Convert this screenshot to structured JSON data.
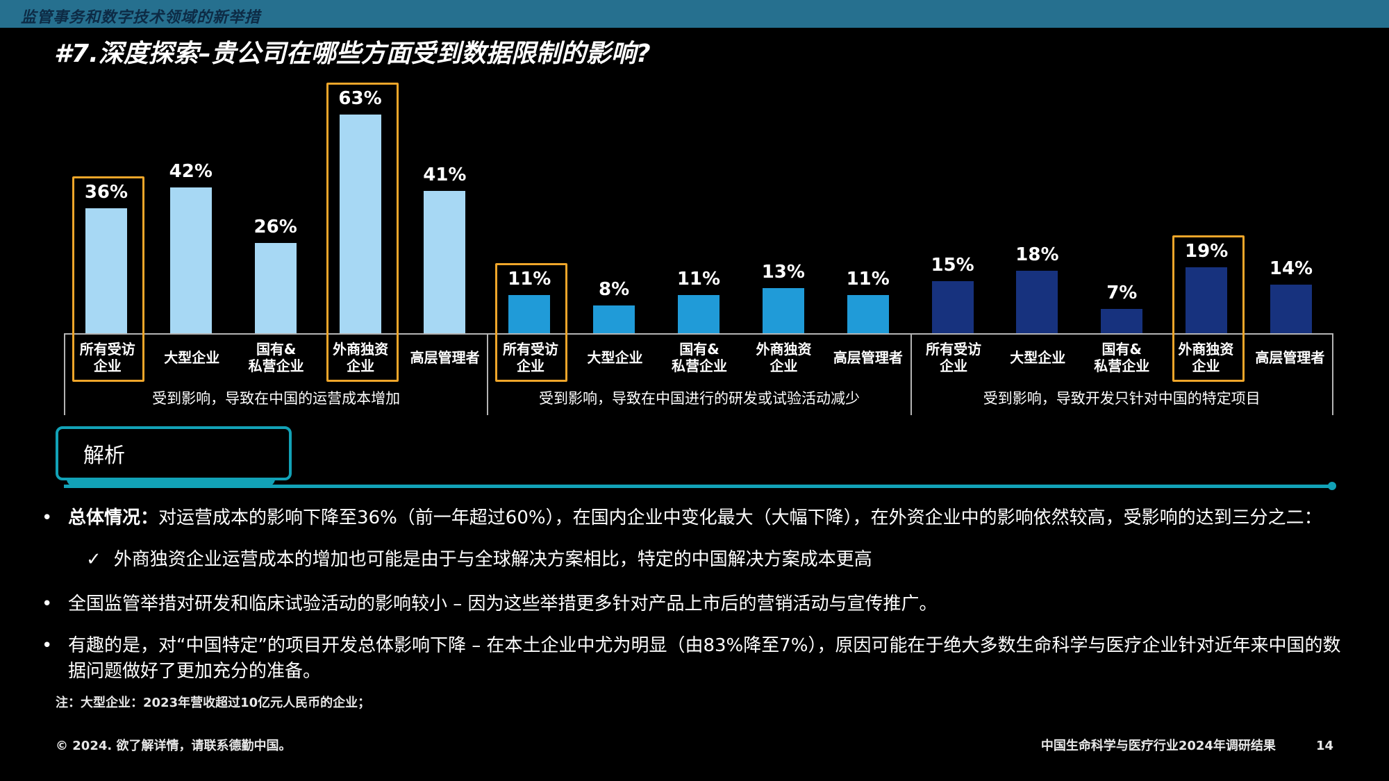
{
  "header": {
    "tagline": "监管事务和数字技术领域的新举措"
  },
  "title": "#7.深度探索–贵公司在哪些方面受到数据限制的影响?",
  "chart_data": {
    "type": "bar",
    "unit": "%",
    "ylim": [
      0,
      70
    ],
    "grid": false,
    "categories": [
      "所有受访\n企业",
      "大型企业",
      "国有&\n私营企业",
      "外商独资\n企业",
      "高层管理者"
    ],
    "highlight_color": "#efa62a",
    "axis_color": "#b5b5b5",
    "groups": [
      {
        "caption": "受到影响，导致在中国的运营成本增加",
        "color": "#a7d8f4",
        "values": [
          36,
          42,
          26,
          63,
          41
        ],
        "labels": [
          "36%",
          "42%",
          "26%",
          "63%",
          "41%"
        ],
        "highlighted": [
          0,
          3
        ]
      },
      {
        "caption": "受到影响，导致在中国进行的研发或试验活动减少",
        "color": "#209bd8",
        "values": [
          11,
          8,
          11,
          13,
          11
        ],
        "labels": [
          "11%",
          "8%",
          "11%",
          "13%",
          "11%"
        ],
        "highlighted": [
          0
        ]
      },
      {
        "caption": "受到影响，导致开发只针对中国的特定项目",
        "color": "#17327e",
        "values": [
          15,
          18,
          7,
          19,
          14
        ],
        "labels": [
          "15%",
          "18%",
          "7%",
          "19%",
          "14%"
        ],
        "highlighted": [
          3
        ]
      }
    ]
  },
  "analysis": {
    "label": "解析",
    "accent_color": "#12a2b7",
    "bullets": [
      {
        "marker": "•",
        "lead": "总体情况：",
        "text": "对运营成本的影响下降至36%（前一年超过60%），在国内企业中变化最大（大幅下降），在外资企业中的影响依然较高，受影响的达到三分之二：",
        "subs": [
          {
            "marker": "✓",
            "text": "外商独资企业运营成本的增加也可能是由于与全球解决方案相比，特定的中国解决方案成本更高"
          }
        ]
      },
      {
        "marker": "•",
        "lead": "",
        "text": "全国监管举措对研发和临床试验活动的影响较小 – 因为这些举措更多针对产品上市后的营销活动与宣传推广。",
        "subs": []
      },
      {
        "marker": "•",
        "lead": "",
        "text": "有趣的是，对“中国特定”的项目开发总体影响下降 – 在本土企业中尤为明显（由83%降至7%），原因可能在于绝大多数生命科学与医疗企业针对近年来中国的数据问题做好了更加充分的准备。",
        "subs": []
      }
    ]
  },
  "note": "注：大型企业：2023年营收超过10亿元人民币的企业；",
  "footer": {
    "copyright": "© 2024. 欲了解详情，请联系德勤中国。",
    "source": "中国生命科学与医疗行业2024年调研结果",
    "page": "14"
  }
}
